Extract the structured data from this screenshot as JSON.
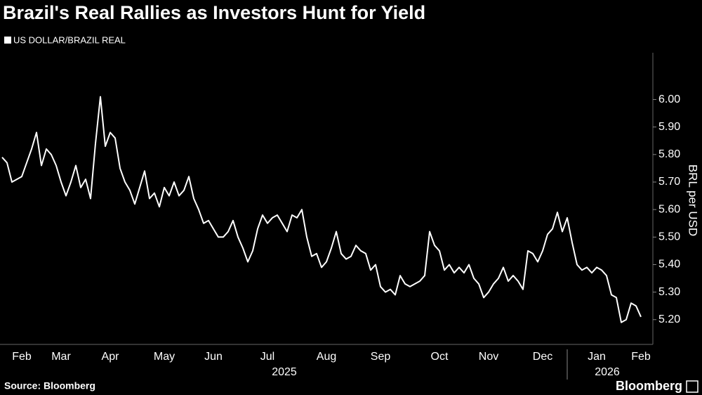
{
  "chart_data": {
    "type": "line",
    "title": "Brazil's Real Rallies as Investors Hunt for Yield",
    "y_label": "BRL per USD",
    "source": "Source: Bloomberg",
    "brand": "Bloomberg",
    "year_labels": [
      "2025",
      "2026"
    ],
    "color": "#ffffff",
    "ylim": [
      5.11,
      6.17
    ],
    "yticks": [
      {
        "value": 5.2,
        "label": "5.20"
      },
      {
        "value": 5.3,
        "label": "5.30"
      },
      {
        "value": 5.4,
        "label": "5.40"
      },
      {
        "value": 5.5,
        "label": "5.50"
      },
      {
        "value": 5.6,
        "label": "5.60"
      },
      {
        "value": 5.7,
        "label": "5.70"
      },
      {
        "value": 5.8,
        "label": "5.80"
      },
      {
        "value": 5.9,
        "label": "5.90"
      },
      {
        "value": 6,
        "label": "6.00"
      }
    ],
    "categories": [
      null,
      null,
      null,
      null,
      "Feb",
      null,
      null,
      null,
      null,
      null,
      null,
      null,
      "Mar",
      null,
      null,
      null,
      null,
      null,
      null,
      null,
      null,
      null,
      "Apr",
      null,
      null,
      null,
      null,
      null,
      null,
      null,
      null,
      null,
      null,
      "May",
      null,
      null,
      null,
      null,
      null,
      null,
      null,
      null,
      null,
      "Jun",
      null,
      null,
      null,
      null,
      null,
      null,
      null,
      null,
      null,
      null,
      "Jul",
      null,
      null,
      null,
      null,
      null,
      null,
      null,
      null,
      null,
      null,
      null,
      "Aug",
      null,
      null,
      null,
      null,
      null,
      null,
      null,
      null,
      null,
      null,
      "Sep",
      null,
      null,
      null,
      null,
      null,
      null,
      null,
      null,
      null,
      null,
      null,
      "Oct",
      null,
      null,
      null,
      null,
      null,
      null,
      null,
      null,
      null,
      "Nov",
      null,
      null,
      null,
      null,
      null,
      null,
      null,
      null,
      null,
      null,
      "Dec",
      null,
      null,
      null,
      null,
      null,
      null,
      null,
      null,
      null,
      null,
      "Jan",
      null,
      null,
      null,
      null,
      null,
      null,
      null,
      null,
      "Feb"
    ],
    "series": [
      {
        "name": "US DOLLAR/BRAZIL REAL",
        "color": "#ffffff",
        "values": [
          5.79,
          5.77,
          5.7,
          5.71,
          5.72,
          5.77,
          5.82,
          5.88,
          5.76,
          5.82,
          5.8,
          5.76,
          5.7,
          5.65,
          5.7,
          5.76,
          5.68,
          5.71,
          5.64,
          5.84,
          6.01,
          5.83,
          5.88,
          5.86,
          5.75,
          5.7,
          5.67,
          5.62,
          5.68,
          5.74,
          5.64,
          5.66,
          5.61,
          5.68,
          5.65,
          5.7,
          5.65,
          5.67,
          5.72,
          5.64,
          5.6,
          5.55,
          5.56,
          5.53,
          5.5,
          5.5,
          5.52,
          5.56,
          5.5,
          5.46,
          5.41,
          5.45,
          5.53,
          5.58,
          5.55,
          5.57,
          5.58,
          5.55,
          5.52,
          5.58,
          5.57,
          5.6,
          5.5,
          5.43,
          5.44,
          5.39,
          5.41,
          5.46,
          5.52,
          5.44,
          5.42,
          5.43,
          5.47,
          5.45,
          5.44,
          5.38,
          5.4,
          5.32,
          5.3,
          5.31,
          5.29,
          5.36,
          5.33,
          5.32,
          5.33,
          5.34,
          5.36,
          5.52,
          5.47,
          5.45,
          5.38,
          5.4,
          5.37,
          5.39,
          5.37,
          5.4,
          5.35,
          5.33,
          5.28,
          5.3,
          5.33,
          5.35,
          5.39,
          5.34,
          5.36,
          5.34,
          5.31,
          5.45,
          5.44,
          5.41,
          5.45,
          5.51,
          5.53,
          5.59,
          5.52,
          5.57,
          5.48,
          5.4,
          5.38,
          5.39,
          5.37,
          5.39,
          5.38,
          5.36,
          5.29,
          5.28,
          5.19,
          5.2,
          5.26,
          5.25,
          5.21
        ]
      }
    ]
  }
}
